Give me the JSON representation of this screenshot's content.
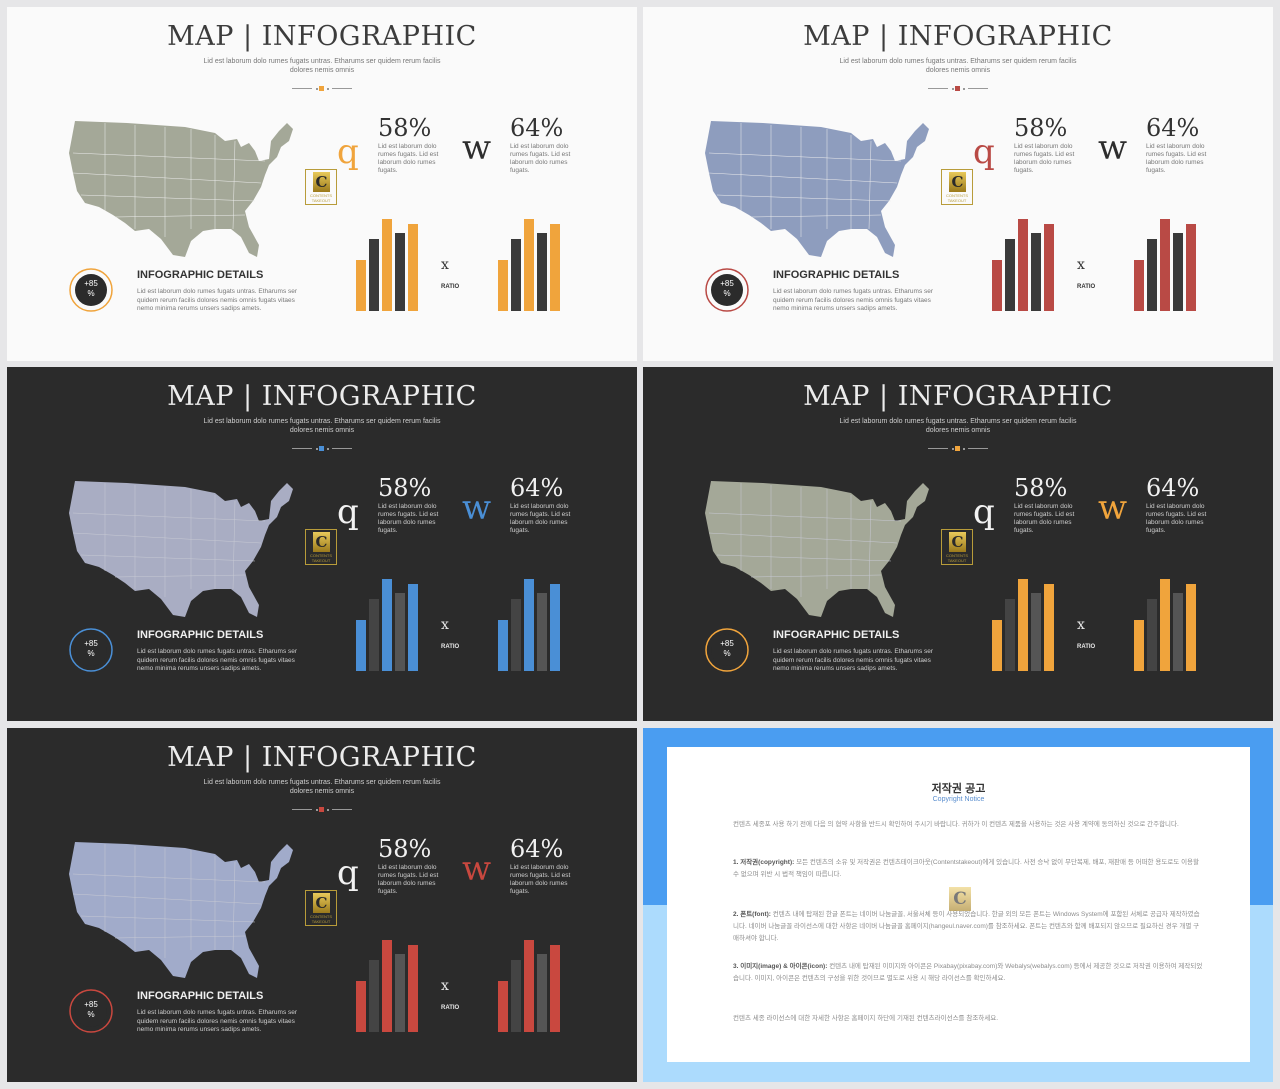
{
  "slides": [
    {
      "id": "s1",
      "theme": "light",
      "accent": "#f0a43c",
      "map": "#a4a898",
      "q_color": "#f0a43c",
      "w_color": "#2d2d2d",
      "bar_dark": "#3a3a3a",
      "bar_gray": "#3a3a3a",
      "ring": "#f0a43c"
    },
    {
      "id": "s2",
      "theme": "light",
      "accent": "#b94a45",
      "map": "#8e9dbe",
      "q_color": "#b94a45",
      "w_color": "#2d2d2d",
      "bar_dark": "#3a3a3a",
      "bar_gray": "#3a3a3a",
      "ring": "#b94a45"
    },
    {
      "id": "s3",
      "theme": "dark",
      "accent": "#4a8fd6",
      "map": "#a9adc3",
      "q_color": "#f2f2f2",
      "w_color": "#4a8fd6",
      "bar_dark": "#555555",
      "bar_gray": "#444444",
      "ring": "#4a8fd6"
    },
    {
      "id": "s4",
      "theme": "dark",
      "accent": "#f0a43c",
      "map": "#a4a898",
      "q_color": "#f2f2f2",
      "w_color": "#f0a43c",
      "bar_dark": "#555555",
      "bar_gray": "#444444",
      "ring": "#f0a43c"
    },
    {
      "id": "s5",
      "theme": "dark",
      "accent": "#c9483f",
      "map": "#a1abca",
      "q_color": "#f2f2f2",
      "w_color": "#c9483f",
      "bar_dark": "#555555",
      "bar_gray": "#444444",
      "ring": "#c9483f"
    }
  ],
  "content": {
    "title": "MAP | INFOGRAPHIC",
    "subtitle": "Lid est laborum dolo rumes fugats untras. Etharums ser quidem rerum facilis dolores nemis omnis",
    "glyph_q": "q",
    "glyph_w": "w",
    "pct1": "58%",
    "pct2": "64%",
    "desc1": "Lid est laborum dolo rumes fugats. Lid est laborum dolo rumes fugats.",
    "desc2": "Lid est laborum dolo rumes fugats. Lid est laborum dolo rumes fugats.",
    "x_symbol": "x",
    "ratio_label": "RATIO",
    "ring_value": "+85",
    "ring_unit": "%",
    "details_title": "INFOGRAPHIC DETAILS",
    "details_text": "Lid est laborum dolo rumes fugats untras. Etharums ser quidem rerum facilis dolores nemis omnis fugats vitaes nemo minima rerums unsers sadips amets.",
    "logo_letter": "C",
    "logo_text": "CONTENTS TAKEOUT"
  },
  "bar_groups": [
    [
      0.55,
      0.78,
      1.0,
      0.85,
      0.95
    ],
    [
      0.55,
      0.78,
      1.0,
      0.85,
      0.95
    ]
  ],
  "copyright": {
    "title": "저작권 공고",
    "subtitle": "Copyright Notice",
    "logo_letter": "C",
    "intro": "컨텐츠 세종포 사용 하기 전에 다음 의 협약 사항을 반드시 확인하여 주시기 바랍니다. 귀하가 이 컨텐츠 제품을 사용하는 것은 사용 계약에 동의하신 것으로 간주합니다.",
    "p1_head": "1. 저작권(copyright):",
    "p1": "모든 컨텐츠의 소유 및 저작권은 컨텐츠테이크아웃(Contentstakeout)에게 있습니다. 사전 승낙 없이 무단복제, 배포, 재판매 등 어떠한 용도로도 이용할 수 없으며 위반 시 법적 책임이 따릅니다.",
    "p2_head": "2. 폰트(font):",
    "p2": "컨텐츠 내에 탑재된 한글 폰트는 네이버 나눔글꼴, 서울서체 등이 사용되었습니다. 한글 외의 모든 폰트는 Windows System에 포함된 서체로 공급자 제작하였습니다. 네이버 나눔글꼴 라이선스에 대한 사항은 네이버 나눔글꼴 홈페이지(hangeul.naver.com)를 참조하세요. 폰트는 컨텐츠와 함께 배포되지 않으므로 필요하신 경우 개별 구매하셔야 합니다.",
    "p3_head": "3. 이미지(image) & 아이콘(icon):",
    "p3": "컨텐츠 내에 탑재된 이미지와 아이콘은 Pixabay(pixabay.com)와 Webalys(webalys.com) 등에서 제공한 것으로 저작권 이용하여 제작되었습니다. 이미지, 아이콘은 컨텐츠의 구성을 위한 것이므로 별도로 사용 시 해당 라이선스를 확인하세요.",
    "outro": "컨텐츠 세종 라이선스에 대한 자세한 사항은 홈페이지 하단에 기재된 컨텐츠라이선스를 참조하세요."
  }
}
